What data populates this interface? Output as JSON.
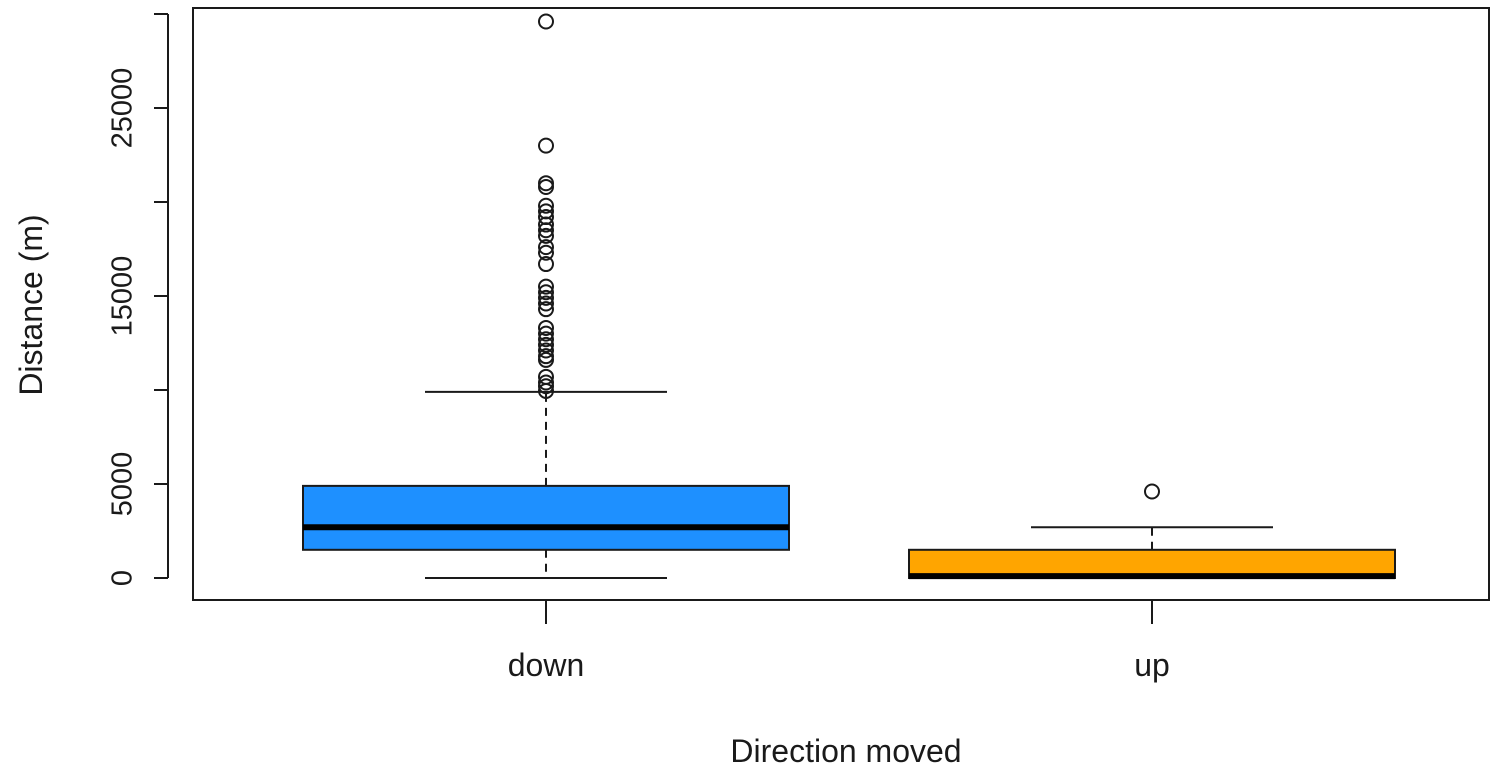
{
  "chart_data": {
    "type": "boxplot",
    "xlabel": "Direction moved",
    "ylabel": "Distance (m)",
    "ylim": [
      -1200,
      30500
    ],
    "yticks": [
      0,
      5000,
      10000,
      15000,
      20000,
      25000,
      30000
    ],
    "ytick_labels": [
      "0",
      "5000",
      "",
      "15000",
      "",
      "25000",
      ""
    ],
    "categories": [
      "down",
      "up"
    ],
    "boxes": [
      {
        "category": "down",
        "color": "#1E90FF",
        "whisker_low": 0,
        "q1": 1500,
        "median": 2700,
        "q3": 4900,
        "whisker_high": 9900,
        "outliers": [
          29600,
          23000,
          21000,
          20800,
          19800,
          19500,
          19200,
          18800,
          18500,
          18200,
          17600,
          17300,
          16700,
          15500,
          15200,
          14900,
          14600,
          14300,
          13300,
          13000,
          12700,
          12400,
          12100,
          11800,
          11600,
          10700,
          10400,
          10200,
          9950
        ]
      },
      {
        "category": "up",
        "color": "#FFA500",
        "whisker_low": 0,
        "q1": 0,
        "median": 100,
        "q3": 1500,
        "whisker_high": 2700,
        "outliers": [
          4600
        ]
      }
    ]
  }
}
